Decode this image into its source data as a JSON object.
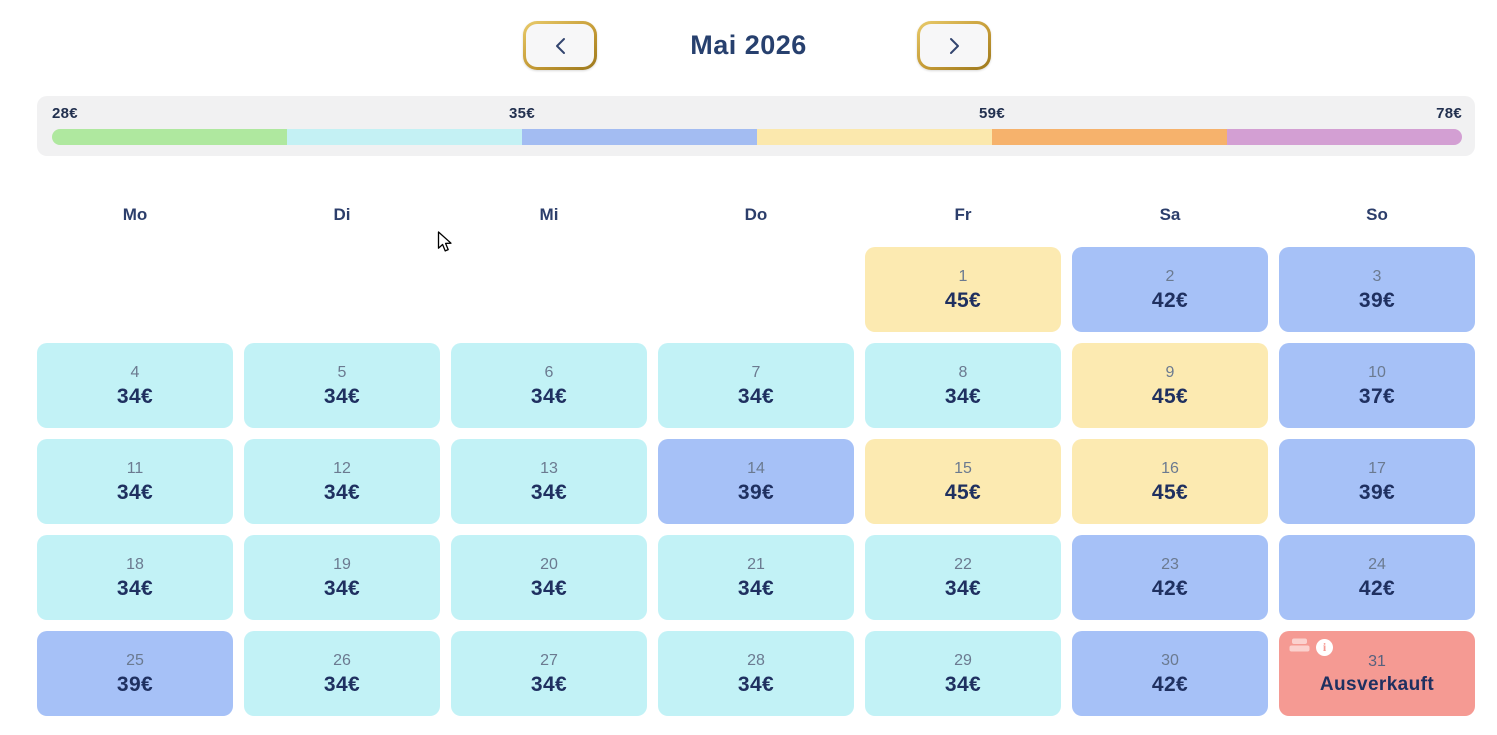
{
  "header": {
    "title": "Mai 2026",
    "prev_button_icon": "chevron-left",
    "next_button_icon": "chevron-right"
  },
  "price_legend": {
    "labels": {
      "min": "28€",
      "mid1": "35€",
      "mid2": "59€",
      "max": "78€"
    },
    "segment_colors": [
      "#afe89f",
      "#c4f1f4",
      "#a3bcf2",
      "#fbe8ad",
      "#f6b26c",
      "#d39fd3"
    ]
  },
  "calendar": {
    "weekdays": [
      "Mo",
      "Di",
      "Mi",
      "Do",
      "Fr",
      "Sa",
      "So"
    ],
    "leading_empty": 4,
    "soldout_day": "31",
    "days": [
      {
        "day": "1",
        "price": "45€",
        "tier": "yellow"
      },
      {
        "day": "2",
        "price": "42€",
        "tier": "blue"
      },
      {
        "day": "3",
        "price": "39€",
        "tier": "blue"
      },
      {
        "day": "4",
        "price": "34€",
        "tier": "cyan"
      },
      {
        "day": "5",
        "price": "34€",
        "tier": "cyan"
      },
      {
        "day": "6",
        "price": "34€",
        "tier": "cyan"
      },
      {
        "day": "7",
        "price": "34€",
        "tier": "cyan"
      },
      {
        "day": "8",
        "price": "34€",
        "tier": "cyan"
      },
      {
        "day": "9",
        "price": "45€",
        "tier": "yellow"
      },
      {
        "day": "10",
        "price": "37€",
        "tier": "blue"
      },
      {
        "day": "11",
        "price": "34€",
        "tier": "cyan"
      },
      {
        "day": "12",
        "price": "34€",
        "tier": "cyan"
      },
      {
        "day": "13",
        "price": "34€",
        "tier": "cyan"
      },
      {
        "day": "14",
        "price": "39€",
        "tier": "blue"
      },
      {
        "day": "15",
        "price": "45€",
        "tier": "yellow"
      },
      {
        "day": "16",
        "price": "45€",
        "tier": "yellow"
      },
      {
        "day": "17",
        "price": "39€",
        "tier": "blue"
      },
      {
        "day": "18",
        "price": "34€",
        "tier": "cyan"
      },
      {
        "day": "19",
        "price": "34€",
        "tier": "cyan"
      },
      {
        "day": "20",
        "price": "34€",
        "tier": "cyan"
      },
      {
        "day": "21",
        "price": "34€",
        "tier": "cyan"
      },
      {
        "day": "22",
        "price": "34€",
        "tier": "cyan"
      },
      {
        "day": "23",
        "price": "42€",
        "tier": "blue"
      },
      {
        "day": "24",
        "price": "42€",
        "tier": "blue"
      },
      {
        "day": "25",
        "price": "39€",
        "tier": "blue"
      },
      {
        "day": "26",
        "price": "34€",
        "tier": "cyan"
      },
      {
        "day": "27",
        "price": "34€",
        "tier": "cyan"
      },
      {
        "day": "28",
        "price": "34€",
        "tier": "cyan"
      },
      {
        "day": "29",
        "price": "34€",
        "tier": "cyan"
      },
      {
        "day": "30",
        "price": "42€",
        "tier": "blue"
      },
      {
        "day": "31",
        "price": "Ausverkauft",
        "tier": "soldout",
        "icons": [
          "bed-icon",
          "info-icon"
        ]
      }
    ]
  },
  "colors": {
    "tiers": {
      "cyan": "#c2f2f6",
      "blue": "#a6c1f7",
      "yellow": "#fceab1",
      "soldout": "#f59a93"
    },
    "accent_gold": "#bf9433",
    "text_navy": "#1f3060",
    "day_number_gray": "#6b7a90",
    "legend_background": "#f1f1f2"
  }
}
